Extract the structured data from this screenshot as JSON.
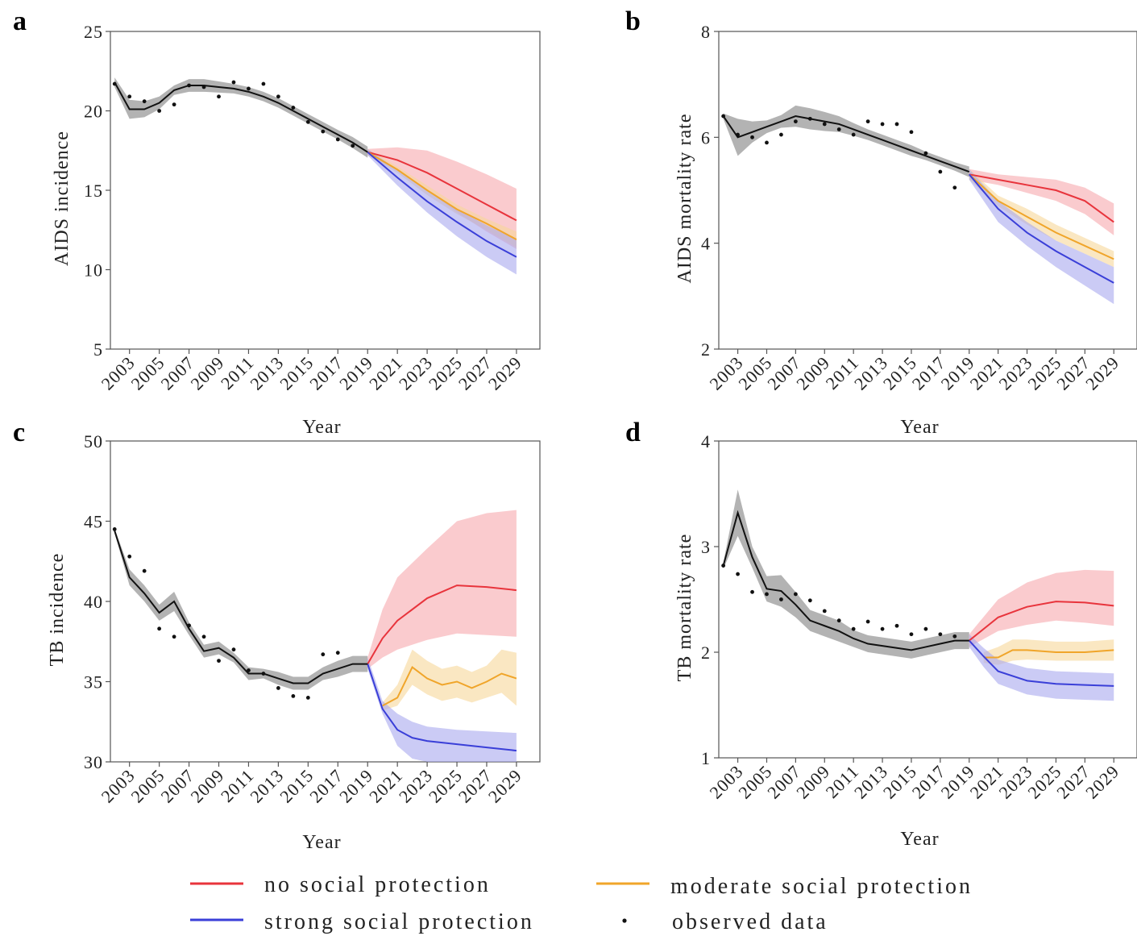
{
  "figure": {
    "legend": [
      {
        "key": "no",
        "label": "no social protection",
        "color": "#e8343c"
      },
      {
        "key": "moderate",
        "label": "moderate social protection",
        "color": "#f0a52a"
      },
      {
        "key": "strong",
        "label": "strong social protection",
        "color": "#3a3fd8"
      },
      {
        "key": "observed",
        "label": "observed data",
        "color": "#111111"
      }
    ],
    "colors": {
      "fitted": "#111111",
      "fitted_band": "#9a9a9a",
      "no_band": "#f6a9ad",
      "moderate_band": "#f7d79a",
      "strong_band": "#a9a8ef",
      "axes": "#555555"
    }
  },
  "chart_data": [
    {
      "id": "a",
      "type": "line",
      "panel_label": "a",
      "xlabel": "Year",
      "ylabel": "AIDS incidence",
      "ylim": [
        5,
        25
      ],
      "yticks": [
        5,
        10,
        15,
        20,
        25
      ],
      "xticks": [
        2003,
        2005,
        2007,
        2009,
        2011,
        2013,
        2015,
        2017,
        2019,
        2021,
        2023,
        2025,
        2027,
        2029
      ],
      "observed": {
        "x": [
          2002,
          2003,
          2004,
          2005,
          2006,
          2007,
          2008,
          2009,
          2010,
          2011,
          2012,
          2013,
          2014,
          2015,
          2016,
          2017,
          2018
        ],
        "y": [
          21.7,
          20.9,
          20.6,
          20.0,
          20.4,
          21.6,
          21.5,
          20.9,
          21.8,
          21.4,
          21.7,
          20.9,
          20.2,
          19.3,
          18.7,
          18.2,
          17.8
        ]
      },
      "fitted": {
        "x": [
          2002,
          2003,
          2004,
          2005,
          2006,
          2007,
          2008,
          2009,
          2010,
          2011,
          2012,
          2013,
          2014,
          2015,
          2016,
          2017,
          2018,
          2019
        ],
        "y": [
          21.8,
          20.1,
          20.1,
          20.5,
          21.3,
          21.6,
          21.6,
          21.5,
          21.4,
          21.2,
          20.9,
          20.5,
          20.0,
          19.5,
          19.0,
          18.5,
          18.0,
          17.4
        ],
        "band": [
          0.3,
          0.6,
          0.5,
          0.4,
          0.3,
          0.4,
          0.4,
          0.35,
          0.3,
          0.3,
          0.3,
          0.3,
          0.3,
          0.3,
          0.3,
          0.3,
          0.35,
          0.35
        ]
      },
      "series": [
        {
          "key": "no",
          "x": [
            2019,
            2021,
            2023,
            2025,
            2027,
            2029
          ],
          "y": [
            17.4,
            16.9,
            16.1,
            15.1,
            14.1,
            13.1
          ],
          "lower": [
            17.2,
            16.3,
            15.0,
            13.6,
            12.4,
            11.3
          ],
          "upper": [
            17.6,
            17.7,
            17.5,
            16.8,
            16.0,
            15.1
          ]
        },
        {
          "key": "moderate",
          "x": [
            2019,
            2021,
            2023,
            2025,
            2027,
            2029
          ],
          "y": [
            17.4,
            16.3,
            15.0,
            13.8,
            12.9,
            11.9
          ],
          "lower": [
            17.2,
            16.1,
            14.7,
            13.5,
            12.5,
            11.4
          ],
          "upper": [
            17.6,
            16.5,
            15.3,
            14.1,
            13.2,
            12.4
          ]
        },
        {
          "key": "strong",
          "x": [
            2019,
            2021,
            2023,
            2025,
            2027,
            2029
          ],
          "y": [
            17.4,
            15.8,
            14.3,
            13.0,
            11.8,
            10.8
          ],
          "lower": [
            17.2,
            15.3,
            13.6,
            12.1,
            10.8,
            9.7
          ],
          "upper": [
            17.6,
            16.3,
            15.0,
            13.8,
            12.8,
            11.9
          ]
        }
      ]
    },
    {
      "id": "b",
      "type": "line",
      "panel_label": "b",
      "xlabel": "Year",
      "ylabel": "AIDS mortality rate",
      "ylim": [
        2,
        8
      ],
      "yticks": [
        2,
        4,
        6,
        8
      ],
      "xticks": [
        2003,
        2005,
        2007,
        2009,
        2011,
        2013,
        2015,
        2017,
        2019,
        2021,
        2023,
        2025,
        2027,
        2029
      ],
      "observed": {
        "x": [
          2002,
          2003,
          2004,
          2005,
          2006,
          2007,
          2008,
          2009,
          2010,
          2011,
          2012,
          2013,
          2014,
          2015,
          2016,
          2017,
          2018
        ],
        "y": [
          6.4,
          6.05,
          6.0,
          5.9,
          6.05,
          6.3,
          6.35,
          6.25,
          6.15,
          6.05,
          6.3,
          6.25,
          6.25,
          6.1,
          5.7,
          5.35,
          5.05
        ]
      },
      "fitted": {
        "x": [
          2002,
          2003,
          2004,
          2005,
          2006,
          2007,
          2008,
          2009,
          2010,
          2011,
          2012,
          2013,
          2014,
          2015,
          2016,
          2017,
          2018,
          2019
        ],
        "y": [
          6.4,
          6.0,
          6.1,
          6.2,
          6.3,
          6.4,
          6.35,
          6.3,
          6.25,
          6.15,
          6.05,
          5.95,
          5.85,
          5.75,
          5.65,
          5.55,
          5.45,
          5.35
        ],
        "band": [
          0.05,
          0.35,
          0.2,
          0.12,
          0.12,
          0.2,
          0.2,
          0.18,
          0.15,
          0.12,
          0.1,
          0.1,
          0.1,
          0.1,
          0.08,
          0.08,
          0.08,
          0.1
        ]
      },
      "series": [
        {
          "key": "no",
          "x": [
            2019,
            2021,
            2023,
            2025,
            2027,
            2029
          ],
          "y": [
            5.3,
            5.2,
            5.1,
            5.0,
            4.8,
            4.4
          ],
          "lower": [
            5.2,
            5.1,
            4.95,
            4.8,
            4.55,
            4.15
          ],
          "upper": [
            5.4,
            5.3,
            5.25,
            5.2,
            5.05,
            4.75
          ]
        },
        {
          "key": "moderate",
          "x": [
            2019,
            2021,
            2023,
            2025,
            2027,
            2029
          ],
          "y": [
            5.3,
            4.8,
            4.5,
            4.2,
            3.95,
            3.7
          ],
          "lower": [
            5.2,
            4.7,
            4.35,
            4.05,
            3.8,
            3.55
          ],
          "upper": [
            5.4,
            4.9,
            4.65,
            4.35,
            4.1,
            3.85
          ]
        },
        {
          "key": "strong",
          "x": [
            2019,
            2021,
            2023,
            2025,
            2027,
            2029
          ],
          "y": [
            5.3,
            4.65,
            4.2,
            3.85,
            3.55,
            3.25
          ],
          "lower": [
            5.2,
            4.4,
            3.95,
            3.55,
            3.2,
            2.85
          ],
          "upper": [
            5.4,
            4.8,
            4.4,
            4.05,
            3.8,
            3.55
          ]
        }
      ]
    },
    {
      "id": "c",
      "type": "line",
      "panel_label": "c",
      "xlabel": "Year",
      "ylabel": "TB incidence",
      "ylim": [
        30,
        50
      ],
      "yticks": [
        30,
        35,
        40,
        45,
        50
      ],
      "xticks": [
        2003,
        2005,
        2007,
        2009,
        2011,
        2013,
        2015,
        2017,
        2019,
        2021,
        2023,
        2025,
        2027,
        2029
      ],
      "observed": {
        "x": [
          2002,
          2003,
          2004,
          2005,
          2006,
          2007,
          2008,
          2009,
          2010,
          2011,
          2012,
          2013,
          2014,
          2015,
          2016,
          2017
        ],
        "y": [
          44.5,
          42.8,
          41.9,
          38.3,
          37.8,
          38.5,
          37.8,
          36.3,
          37.0,
          35.7,
          35.5,
          34.6,
          34.1,
          34.0,
          36.7,
          36.8
        ]
      },
      "fitted": {
        "x": [
          2002,
          2003,
          2004,
          2005,
          2006,
          2007,
          2008,
          2009,
          2010,
          2011,
          2012,
          2013,
          2014,
          2015,
          2016,
          2017,
          2018,
          2019
        ],
        "y": [
          44.4,
          41.5,
          40.5,
          39.3,
          40.0,
          38.3,
          36.9,
          37.1,
          36.5,
          35.5,
          35.5,
          35.2,
          34.9,
          34.9,
          35.5,
          35.8,
          36.1,
          36.1
        ],
        "band": [
          0.15,
          0.5,
          0.5,
          0.5,
          0.6,
          0.4,
          0.4,
          0.4,
          0.3,
          0.4,
          0.3,
          0.4,
          0.4,
          0.4,
          0.4,
          0.5,
          0.5,
          0.5
        ]
      },
      "series": [
        {
          "key": "no",
          "x": [
            2019,
            2020,
            2021,
            2023,
            2025,
            2027,
            2029
          ],
          "y": [
            36.1,
            37.7,
            38.8,
            40.2,
            41.0,
            40.9,
            40.7
          ],
          "lower": [
            35.8,
            36.5,
            37.0,
            37.6,
            38.0,
            37.9,
            37.8
          ],
          "upper": [
            36.5,
            39.5,
            41.5,
            43.3,
            45.0,
            45.5,
            45.7
          ]
        },
        {
          "key": "moderate",
          "x": [
            2020,
            2021,
            2022,
            2023,
            2024,
            2025,
            2026,
            2027,
            2028,
            2029
          ],
          "y": [
            33.5,
            34.0,
            35.9,
            35.2,
            34.8,
            35.0,
            34.6,
            35.0,
            35.5,
            35.2
          ],
          "lower": [
            33.2,
            33.5,
            34.8,
            34.2,
            33.8,
            34.0,
            33.7,
            34.0,
            34.3,
            33.5
          ],
          "upper": [
            33.7,
            34.8,
            37.0,
            36.3,
            35.8,
            36.0,
            35.6,
            36.0,
            37.0,
            36.8
          ]
        },
        {
          "key": "strong",
          "x": [
            2019,
            2020,
            2021,
            2022,
            2023,
            2025,
            2027,
            2029
          ],
          "y": [
            36.1,
            33.3,
            32.0,
            31.5,
            31.3,
            31.1,
            30.9,
            30.7
          ],
          "lower": [
            35.8,
            33.0,
            31.0,
            30.2,
            30.0,
            30.0,
            30.0,
            30.0
          ],
          "upper": [
            36.5,
            33.8,
            33.0,
            32.5,
            32.2,
            32.0,
            31.9,
            31.8
          ]
        }
      ]
    },
    {
      "id": "d",
      "type": "line",
      "panel_label": "d",
      "xlabel": "Year",
      "ylabel": "TB mortality rate",
      "ylim": [
        1,
        4
      ],
      "yticks": [
        1,
        2,
        3,
        4
      ],
      "xticks": [
        2003,
        2005,
        2007,
        2009,
        2011,
        2013,
        2015,
        2017,
        2019,
        2021,
        2023,
        2025,
        2027,
        2029
      ],
      "observed": {
        "x": [
          2002,
          2003,
          2004,
          2005,
          2006,
          2007,
          2008,
          2009,
          2010,
          2011,
          2012,
          2013,
          2014,
          2015,
          2016,
          2017,
          2018
        ],
        "y": [
          2.82,
          2.74,
          2.57,
          2.55,
          2.5,
          2.55,
          2.49,
          2.39,
          2.3,
          2.22,
          2.29,
          2.22,
          2.25,
          2.17,
          2.22,
          2.17,
          2.15
        ]
      },
      "fitted": {
        "x": [
          2002,
          2003,
          2004,
          2005,
          2006,
          2007,
          2008,
          2009,
          2010,
          2011,
          2012,
          2013,
          2014,
          2015,
          2016,
          2017,
          2018,
          2019
        ],
        "y": [
          2.82,
          3.32,
          2.9,
          2.6,
          2.58,
          2.45,
          2.3,
          2.25,
          2.2,
          2.13,
          2.08,
          2.06,
          2.04,
          2.02,
          2.05,
          2.08,
          2.11,
          2.11
        ],
        "band": [
          0.03,
          0.22,
          0.1,
          0.12,
          0.15,
          0.12,
          0.1,
          0.1,
          0.1,
          0.08,
          0.08,
          0.08,
          0.08,
          0.08,
          0.08,
          0.08,
          0.08,
          0.08
        ]
      },
      "series": [
        {
          "key": "no",
          "x": [
            2019,
            2021,
            2023,
            2025,
            2027,
            2029
          ],
          "y": [
            2.11,
            2.33,
            2.43,
            2.48,
            2.47,
            2.44
          ],
          "lower": [
            2.05,
            2.2,
            2.26,
            2.3,
            2.28,
            2.25
          ],
          "upper": [
            2.17,
            2.5,
            2.66,
            2.75,
            2.78,
            2.77
          ]
        },
        {
          "key": "moderate",
          "x": [
            2020,
            2021,
            2022,
            2023,
            2025,
            2027,
            2029
          ],
          "y": [
            1.95,
            1.95,
            2.02,
            2.02,
            2.0,
            2.0,
            2.02
          ],
          "lower": [
            1.9,
            1.88,
            1.92,
            1.93,
            1.92,
            1.92,
            1.92
          ],
          "upper": [
            2.0,
            2.05,
            2.12,
            2.12,
            2.1,
            2.1,
            2.12
          ]
        },
        {
          "key": "strong",
          "x": [
            2019,
            2020,
            2021,
            2023,
            2025,
            2027,
            2029
          ],
          "y": [
            2.11,
            1.96,
            1.82,
            1.73,
            1.7,
            1.69,
            1.68
          ],
          "lower": [
            2.05,
            1.86,
            1.7,
            1.6,
            1.56,
            1.55,
            1.54
          ],
          "upper": [
            2.17,
            2.04,
            1.93,
            1.85,
            1.82,
            1.81,
            1.8
          ]
        }
      ]
    }
  ]
}
